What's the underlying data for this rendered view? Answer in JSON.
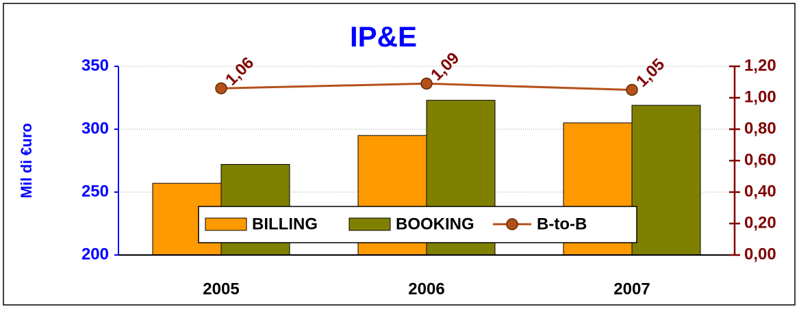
{
  "chart_data": {
    "type": "bar",
    "title": "IP&E",
    "y_label": "Mil di €uro",
    "categories": [
      "2005",
      "2006",
      "2007"
    ],
    "series": [
      {
        "name": "BILLING",
        "color": "#ff9900",
        "values": [
          257,
          295,
          305
        ]
      },
      {
        "name": "BOOKING",
        "color": "#808000",
        "values": [
          272,
          323,
          319
        ]
      },
      {
        "name": "B-to-B",
        "type": "line",
        "axis": "y2",
        "color": "#b5501a",
        "values": [
          1.06,
          1.09,
          1.05
        ],
        "value_labels": [
          "1,06",
          "1,09",
          "1,05"
        ]
      }
    ],
    "ylim": [
      200,
      350
    ],
    "yticks": [
      200,
      250,
      300,
      350
    ],
    "y2lim": [
      0,
      1.2
    ],
    "y2ticks": [
      {
        "value": 0,
        "label": "0,00"
      },
      {
        "value": 0.2,
        "label": "0,20"
      },
      {
        "value": 0.4,
        "label": "0,40"
      },
      {
        "value": 0.6,
        "label": "0,60"
      },
      {
        "value": 0.8,
        "label": "0,80"
      },
      {
        "value": 1.0,
        "label": "1,00"
      },
      {
        "value": 1.2,
        "label": "1,20"
      }
    ],
    "grid": true,
    "legend": "bottom"
  }
}
